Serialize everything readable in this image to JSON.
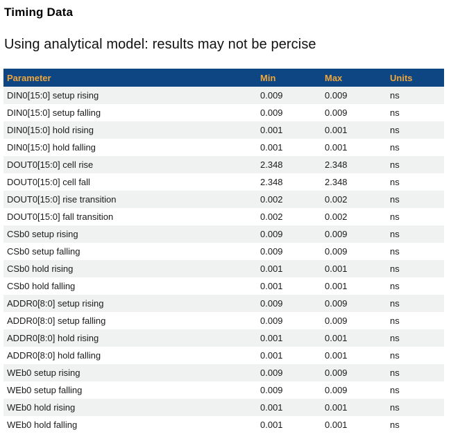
{
  "page": {
    "title": "Timing Data",
    "subtitle": "Using analytical model: results may not be percise"
  },
  "table": {
    "columns": [
      "Parameter",
      "Min",
      "Max",
      "Units"
    ],
    "rows": [
      {
        "parameter": "DIN0[15:0] setup rising",
        "min": "0.009",
        "max": "0.009",
        "units": "ns"
      },
      {
        "parameter": "DIN0[15:0] setup falling",
        "min": "0.009",
        "max": "0.009",
        "units": "ns"
      },
      {
        "parameter": "DIN0[15:0] hold rising",
        "min": "0.001",
        "max": "0.001",
        "units": "ns"
      },
      {
        "parameter": "DIN0[15:0] hold falling",
        "min": "0.001",
        "max": "0.001",
        "units": "ns"
      },
      {
        "parameter": "DOUT0[15:0] cell rise",
        "min": "2.348",
        "max": "2.348",
        "units": "ns"
      },
      {
        "parameter": "DOUT0[15:0] cell fall",
        "min": "2.348",
        "max": "2.348",
        "units": "ns"
      },
      {
        "parameter": "DOUT0[15:0] rise transition",
        "min": "0.002",
        "max": "0.002",
        "units": "ns"
      },
      {
        "parameter": "DOUT0[15:0] fall transition",
        "min": "0.002",
        "max": "0.002",
        "units": "ns"
      },
      {
        "parameter": "CSb0 setup rising",
        "min": "0.009",
        "max": "0.009",
        "units": "ns"
      },
      {
        "parameter": "CSb0 setup falling",
        "min": "0.009",
        "max": "0.009",
        "units": "ns"
      },
      {
        "parameter": "CSb0 hold rising",
        "min": "0.001",
        "max": "0.001",
        "units": "ns"
      },
      {
        "parameter": "CSb0 hold falling",
        "min": "0.001",
        "max": "0.001",
        "units": "ns"
      },
      {
        "parameter": "ADDR0[8:0] setup rising",
        "min": "0.009",
        "max": "0.009",
        "units": "ns"
      },
      {
        "parameter": "ADDR0[8:0] setup falling",
        "min": "0.009",
        "max": "0.009",
        "units": "ns"
      },
      {
        "parameter": "ADDR0[8:0] hold rising",
        "min": "0.001",
        "max": "0.001",
        "units": "ns"
      },
      {
        "parameter": "ADDR0[8:0] hold falling",
        "min": "0.001",
        "max": "0.001",
        "units": "ns"
      },
      {
        "parameter": "WEb0 setup rising",
        "min": "0.009",
        "max": "0.009",
        "units": "ns"
      },
      {
        "parameter": "WEb0 setup falling",
        "min": "0.009",
        "max": "0.009",
        "units": "ns"
      },
      {
        "parameter": "WEb0 hold rising",
        "min": "0.001",
        "max": "0.001",
        "units": "ns"
      },
      {
        "parameter": "WEb0 hold falling",
        "min": "0.001",
        "max": "0.001",
        "units": "ns"
      }
    ]
  },
  "colors": {
    "header_bg": "#0e4583",
    "header_text": "#efa63a",
    "stripe_bg": "#f0f1f1",
    "body_text": "#1a1a1a"
  }
}
